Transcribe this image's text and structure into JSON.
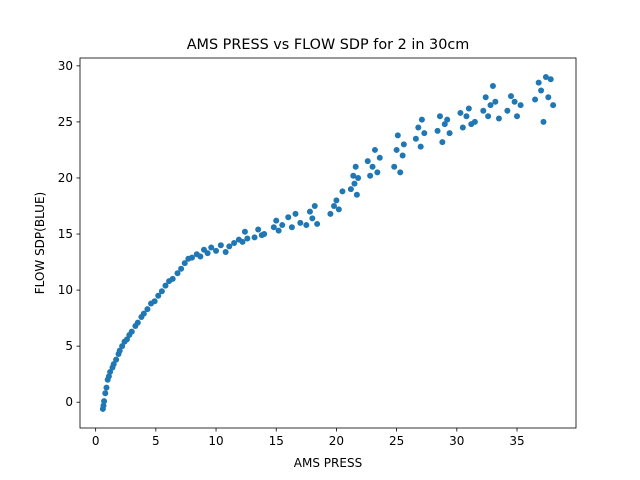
{
  "chart_data": {
    "type": "scatter",
    "title": "AMS PRESS vs FLOW SDP for 2 in 30cm",
    "x_label": "AMS PRESS",
    "y_label": "FLOW SDP(BLUE)",
    "series": [
      {
        "color": "#1f77b4",
        "x": [
          0.6,
          0.65,
          0.7,
          0.8,
          0.9,
          1.0,
          1.1,
          1.2,
          1.4,
          1.5,
          1.7,
          1.9,
          2.0,
          2.2,
          2.4,
          2.6,
          2.8,
          3.0,
          3.3,
          3.5,
          3.8,
          4.0,
          4.3,
          4.6,
          4.9,
          5.2,
          5.5,
          5.8,
          6.1,
          6.4,
          6.8,
          7.1,
          7.4,
          7.7,
          8.0,
          8.4,
          8.7,
          9.0,
          9.3,
          9.6,
          10.0,
          10.4,
          10.8,
          11.1,
          11.5,
          11.9,
          12.2,
          12.4,
          12.6,
          13.2,
          13.5,
          13.8,
          14.0,
          14.8,
          15.0,
          15.2,
          15.5,
          16.0,
          16.3,
          16.6,
          17.0,
          17.5,
          17.8,
          18.0,
          18.2,
          18.4,
          19.5,
          19.8,
          20.0,
          20.2,
          20.5,
          21.2,
          21.4,
          21.5,
          21.6,
          21.7,
          21.8,
          22.6,
          22.8,
          23.0,
          23.2,
          23.4,
          23.6,
          24.8,
          25.0,
          25.1,
          25.3,
          25.5,
          25.6,
          26.6,
          26.8,
          27.0,
          27.1,
          27.3,
          28.4,
          28.6,
          28.8,
          29.0,
          29.2,
          29.4,
          30.3,
          30.5,
          30.8,
          31.0,
          31.2,
          31.5,
          32.2,
          32.4,
          32.6,
          32.8,
          33.0,
          33.2,
          33.5,
          34.2,
          34.5,
          34.8,
          35.0,
          35.3,
          36.5,
          36.8,
          37.0,
          37.2,
          37.4,
          37.6,
          37.8,
          38.0
        ],
        "values": [
          -0.6,
          -0.3,
          0.1,
          0.8,
          1.3,
          2.0,
          2.3,
          2.7,
          3.1,
          3.4,
          3.8,
          4.3,
          4.6,
          5.0,
          5.4,
          5.6,
          6.0,
          6.3,
          6.8,
          7.1,
          7.6,
          7.9,
          8.3,
          8.8,
          9.0,
          9.5,
          9.9,
          10.4,
          10.8,
          11.0,
          11.5,
          11.9,
          12.4,
          12.8,
          12.9,
          13.2,
          13.0,
          13.6,
          13.3,
          13.8,
          13.5,
          14.0,
          13.4,
          13.9,
          14.2,
          14.5,
          14.3,
          15.2,
          14.6,
          14.7,
          15.4,
          14.9,
          15.0,
          15.6,
          16.2,
          15.3,
          15.8,
          16.5,
          15.6,
          16.8,
          16.0,
          15.8,
          17.0,
          16.4,
          17.5,
          15.9,
          16.8,
          17.5,
          18.0,
          17.2,
          18.8,
          19.0,
          20.2,
          19.5,
          21.0,
          18.5,
          20.0,
          21.5,
          20.2,
          21.0,
          22.5,
          20.5,
          21.8,
          21.0,
          22.5,
          23.8,
          20.5,
          22.0,
          23.0,
          23.5,
          24.5,
          22.8,
          25.2,
          24.0,
          24.2,
          25.5,
          23.2,
          24.8,
          25.2,
          24.0,
          25.8,
          24.5,
          25.5,
          26.2,
          24.8,
          25.0,
          26.0,
          27.2,
          25.5,
          26.5,
          28.2,
          26.8,
          25.3,
          26.0,
          27.3,
          26.8,
          25.5,
          26.5,
          27.0,
          28.5,
          27.8,
          25.0,
          29.0,
          27.2,
          28.8,
          26.5
        ]
      }
    ],
    "xlim": [
      -1.3,
      39.9
    ],
    "ylim": [
      -2.3,
      30.7
    ],
    "xticks": [
      0,
      5,
      10,
      15,
      20,
      25,
      30,
      35
    ],
    "yticks": [
      0,
      5,
      10,
      15,
      20,
      25,
      30
    ]
  }
}
